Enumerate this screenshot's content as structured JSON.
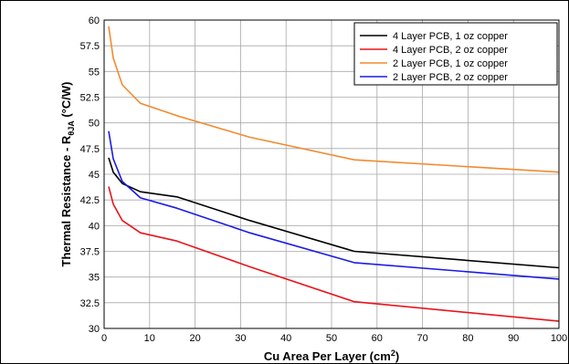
{
  "chart_data": {
    "type": "line",
    "xlabel_main": "Cu Area Per Layer (cm",
    "xlabel_sup": "2",
    "xlabel_tail": ")",
    "ylabel_main": "Thermal Resistance - R",
    "ylabel_sub": "θJA",
    "ylabel_tail": " (°C/W)",
    "xlim": [
      0,
      100
    ],
    "ylim": [
      30,
      60
    ],
    "xticks": [
      0,
      10,
      20,
      30,
      40,
      50,
      60,
      70,
      80,
      90,
      100
    ],
    "yticks": [
      30,
      32.5,
      35,
      37.5,
      40,
      42.5,
      45,
      47.5,
      50,
      52.5,
      55,
      57.5,
      60
    ],
    "grid": true,
    "legend_position": "top-right",
    "series": [
      {
        "name": "4 Layer PCB, 1 oz copper",
        "color": "#000000",
        "x": [
          1,
          2,
          4,
          8,
          16,
          32,
          55,
          100
        ],
        "y": [
          46.6,
          45.2,
          44.1,
          43.3,
          42.8,
          40.5,
          37.5,
          35.9
        ]
      },
      {
        "name": "4 Layer PCB, 2 oz copper",
        "color": "#e8141c",
        "x": [
          1,
          2,
          4,
          8,
          16,
          32,
          55,
          100
        ],
        "y": [
          43.8,
          42.1,
          40.5,
          39.3,
          38.5,
          36.0,
          32.6,
          30.7
        ]
      },
      {
        "name": "2 Layer PCB, 1 oz copper",
        "color": "#f28a30",
        "x": [
          1,
          2,
          4,
          8,
          16,
          32,
          55,
          100
        ],
        "y": [
          59.4,
          56.3,
          53.7,
          51.9,
          50.7,
          48.6,
          46.4,
          45.2
        ]
      },
      {
        "name": "2 Layer PCB, 2 oz copper",
        "color": "#1a1ae6",
        "x": [
          1,
          2,
          4,
          8,
          16,
          32,
          55,
          100
        ],
        "y": [
          49.2,
          46.5,
          44.3,
          42.7,
          41.7,
          39.3,
          36.4,
          34.8
        ]
      }
    ]
  }
}
